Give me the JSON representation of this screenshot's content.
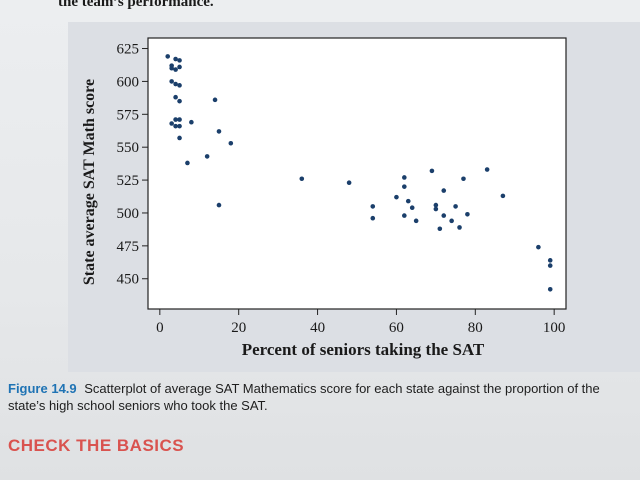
{
  "page": {
    "top_text": "the team’s performance.",
    "caption_label": "Figure 14.9",
    "caption_text": "Scatterplot of average SAT Mathematics score for each state against the proportion of the state’s high school seniors who took the SAT.",
    "section_heading": "CHECK THE BASICS"
  },
  "colors": {
    "point": "#1b3f6b",
    "axis": "#222222",
    "caption_label": "#1f73b4",
    "section_heading": "#d9534f"
  },
  "chart_data": {
    "type": "scatter",
    "title": "",
    "xlabel": "Percent of seniors taking the SAT",
    "ylabel": "State average SAT Math score",
    "xlim": [
      -3,
      103
    ],
    "ylim": [
      427,
      633
    ],
    "xticks": [
      0,
      20,
      40,
      60,
      80,
      100
    ],
    "yticks": [
      450,
      475,
      500,
      525,
      550,
      575,
      600,
      625
    ],
    "grid": false,
    "legend": "none",
    "points": [
      [
        2,
        619
      ],
      [
        3,
        612
      ],
      [
        4,
        617
      ],
      [
        3,
        610
      ],
      [
        4,
        609
      ],
      [
        5,
        611
      ],
      [
        5,
        616
      ],
      [
        3,
        600
      ],
      [
        4,
        598
      ],
      [
        5,
        597
      ],
      [
        4,
        588
      ],
      [
        5,
        585
      ],
      [
        3,
        568
      ],
      [
        4,
        571
      ],
      [
        5,
        571
      ],
      [
        4,
        566
      ],
      [
        5,
        566
      ],
      [
        8,
        569
      ],
      [
        14,
        586
      ],
      [
        5,
        557
      ],
      [
        15,
        562
      ],
      [
        18,
        553
      ],
      [
        7,
        538
      ],
      [
        12,
        543
      ],
      [
        15,
        506
      ],
      [
        36,
        526
      ],
      [
        48,
        523
      ],
      [
        54,
        505
      ],
      [
        54,
        496
      ],
      [
        60,
        512
      ],
      [
        62,
        498
      ],
      [
        62,
        520
      ],
      [
        62,
        527
      ],
      [
        63,
        509
      ],
      [
        64,
        504
      ],
      [
        65,
        494
      ],
      [
        69,
        532
      ],
      [
        70,
        506
      ],
      [
        70,
        503
      ],
      [
        71,
        488
      ],
      [
        72,
        498
      ],
      [
        72,
        517
      ],
      [
        74,
        494
      ],
      [
        75,
        505
      ],
      [
        76,
        489
      ],
      [
        77,
        526
      ],
      [
        78,
        499
      ],
      [
        83,
        533
      ],
      [
        87,
        513
      ],
      [
        96,
        474
      ],
      [
        99,
        464
      ],
      [
        99,
        460
      ],
      [
        99,
        442
      ]
    ]
  }
}
